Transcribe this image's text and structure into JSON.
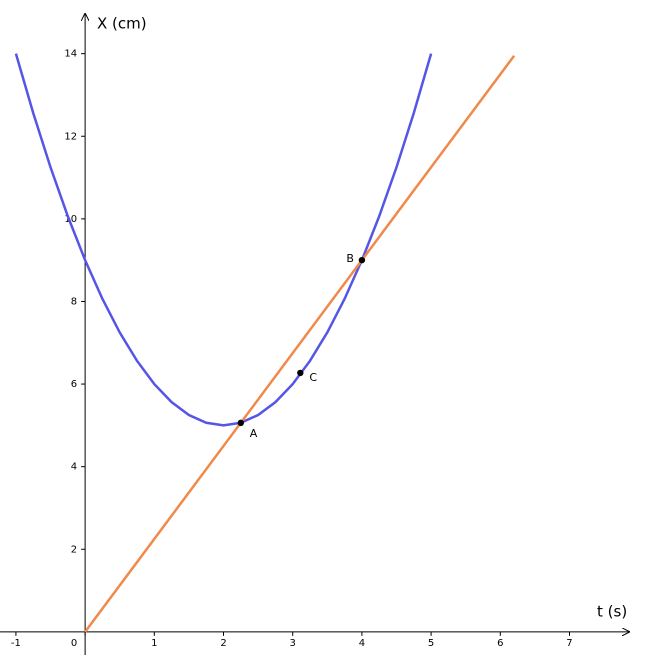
{
  "chart_data": {
    "type": "line",
    "x_label": "t (s)",
    "y_label": "X (cm)",
    "xlim": [
      -1.23,
      7.86
    ],
    "ylim": [
      -0.56,
      14.96
    ],
    "xticks": [
      -1,
      0,
      1,
      2,
      3,
      4,
      5,
      6,
      7
    ],
    "yticks": [
      2,
      4,
      6,
      8,
      10,
      12,
      14
    ],
    "series": [
      {
        "color": "#5555e6",
        "x": [
          -1,
          -0.75,
          -0.5,
          -0.25,
          0,
          0.25,
          0.5,
          0.75,
          1,
          1.25,
          1.5,
          1.75,
          2,
          2.25,
          2.5,
          2.75,
          3,
          3.25,
          3.5,
          3.75,
          4,
          4.25,
          4.5,
          4.75,
          5
        ],
        "values": [
          14,
          12.5625,
          11.25,
          10.0625,
          9,
          8.0625,
          7.25,
          6.5625,
          6,
          5.5625,
          5.25,
          5.0625,
          5,
          5.0625,
          5.25,
          5.5625,
          6,
          6.5625,
          7.25,
          8.0625,
          9,
          10.0625,
          11.25,
          12.5625,
          14
        ]
      },
      {
        "color": "#f08a4b",
        "x": [
          0,
          6.2
        ],
        "values": [
          0,
          13.95
        ]
      }
    ],
    "points": [
      {
        "label": "A",
        "x": 2.25,
        "y": 5.06
      },
      {
        "label": "B",
        "x": 4,
        "y": 9
      },
      {
        "label": "C",
        "x": 3.11,
        "y": 6.27
      }
    ]
  }
}
